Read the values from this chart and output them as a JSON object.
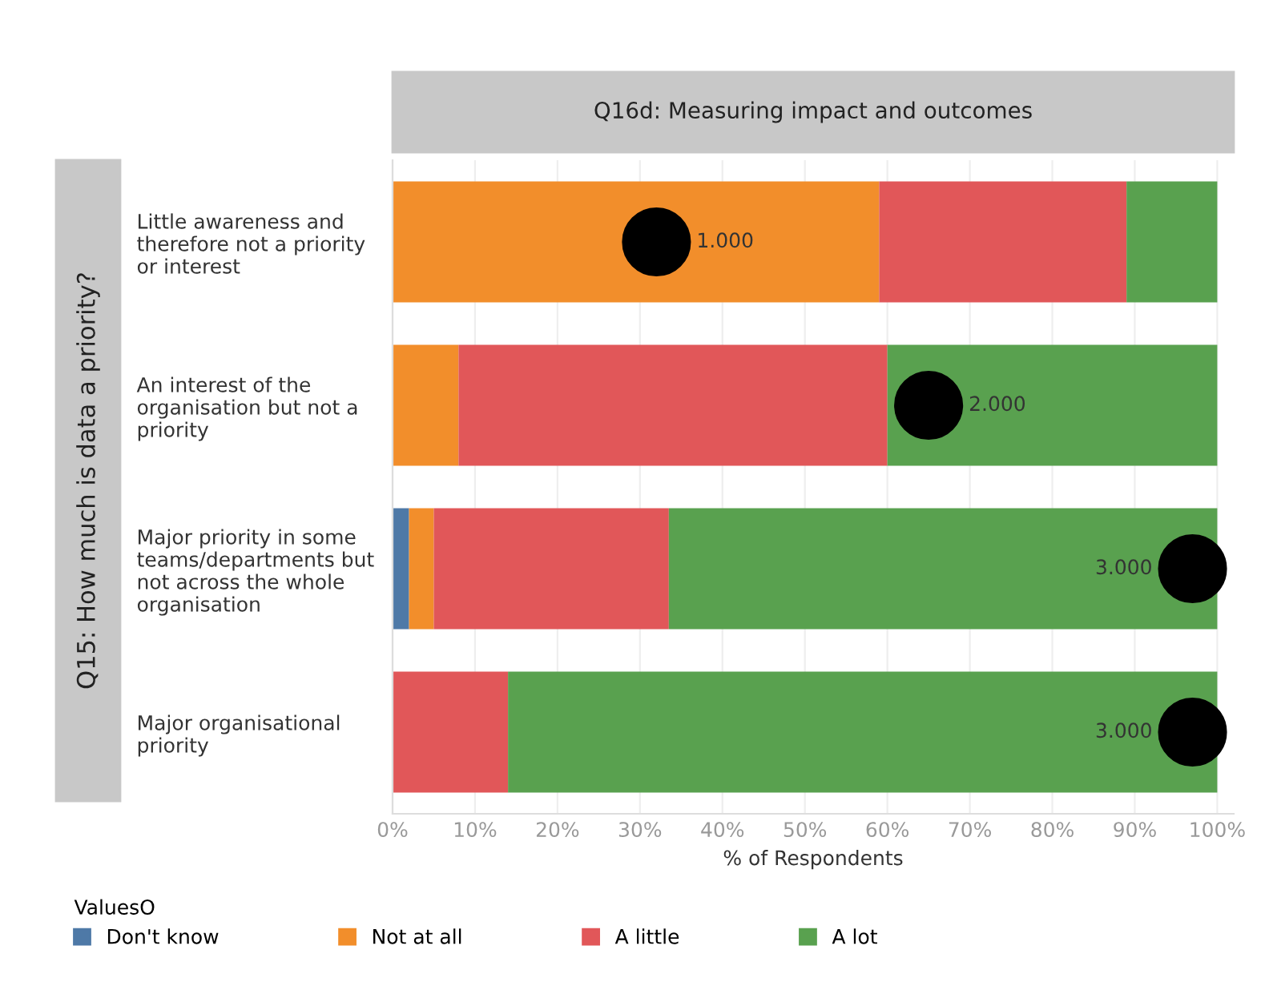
{
  "chart_data": {
    "type": "bar",
    "orientation": "horizontal",
    "stacked": true,
    "title": "Q16d: Measuring impact and outcomes",
    "ylabel": "Q15: How much is data a priority?",
    "xlabel": "% of Respondents",
    "legend_title": "ValuesO",
    "categories": [
      "Little awareness and\ntherefore not a priority\nor interest",
      "An interest of the\norganisation but not a\npriority",
      "Major priority in some\nteams/departments but\nnot across the whole\norganisation",
      "Major organisational\npriority"
    ],
    "series": [
      {
        "name": "Don't know",
        "color": "#4e79a7",
        "values": [
          0,
          0,
          2,
          0
        ]
      },
      {
        "name": "Not at all",
        "color": "#f28e2b",
        "values": [
          59,
          8,
          3,
          0
        ]
      },
      {
        "name": "A little",
        "color": "#e15759",
        "values": [
          30,
          52,
          28.5,
          14
        ]
      },
      {
        "name": "A lot",
        "color": "#59a14f",
        "values": [
          11,
          40,
          66.5,
          86
        ]
      },
      {
        "type": "scatter",
        "color": "#000000",
        "values": [
          32,
          65,
          97,
          97
        ]
      }
    ],
    "xlim": [
      0,
      102
    ],
    "annotations": [
      {
        "text": "1.000",
        "x": 32,
        "y": "Little awareness and\ntherefore not a priority\nor interest"
      },
      {
        "text": "2.000",
        "x": 65,
        "y": "An interest of the\norganisation but not a\npriority"
      },
      {
        "text": "3.000",
        "x": 97,
        "y": "Major priority in some\nteams/departments but\nnot across the whole\norganisation"
      },
      {
        "text": "3.000",
        "x": 97,
        "y": "Major organisational\npriority"
      }
    ],
    "xticks": [
      {
        "value": 0,
        "label": "0%"
      },
      {
        "value": 10,
        "label": "10%"
      },
      {
        "value": 20,
        "label": "20%"
      },
      {
        "value": 30,
        "label": "30%"
      },
      {
        "value": 40,
        "label": "40%"
      },
      {
        "value": 50,
        "label": "50%"
      },
      {
        "value": 60,
        "label": "60%"
      },
      {
        "value": 70,
        "label": "70%"
      },
      {
        "value": 80,
        "label": "80%"
      },
      {
        "value": 90,
        "label": "90%"
      },
      {
        "value": 100,
        "label": "100%"
      }
    ],
    "grid": "x",
    "legend": "bottom",
    "marker": "circle"
  }
}
